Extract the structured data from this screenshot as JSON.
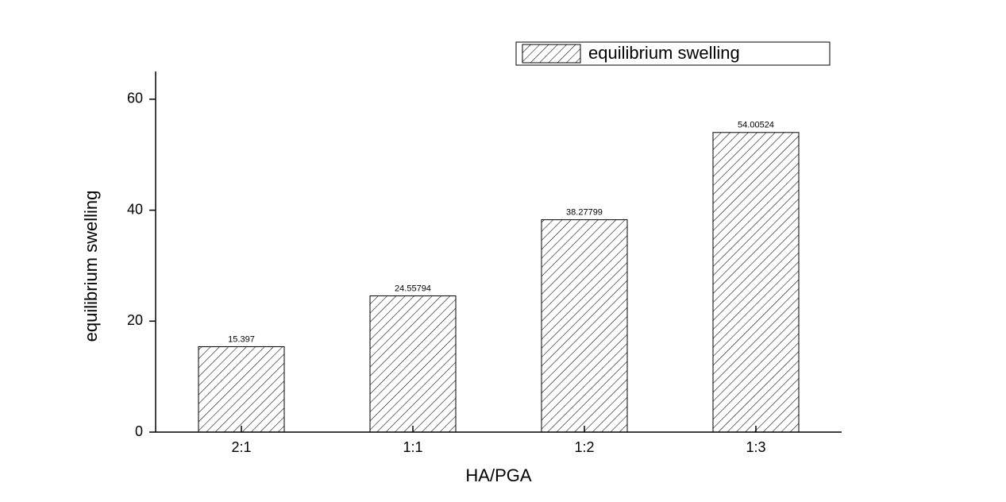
{
  "chart_data": {
    "type": "bar",
    "x_label": "HA/PGA",
    "y_label": "equilibrium swelling",
    "categories": [
      "2:1",
      "1:1",
      "1:2",
      "1:3"
    ],
    "series": [
      {
        "name": "equilibrium swelling",
        "color": "#000000",
        "values": [
          15.397,
          24.55794,
          38.27799,
          54.00524
        ]
      }
    ],
    "ylim": [
      0,
      65
    ],
    "yticks": [
      0,
      20,
      40,
      60
    ]
  }
}
